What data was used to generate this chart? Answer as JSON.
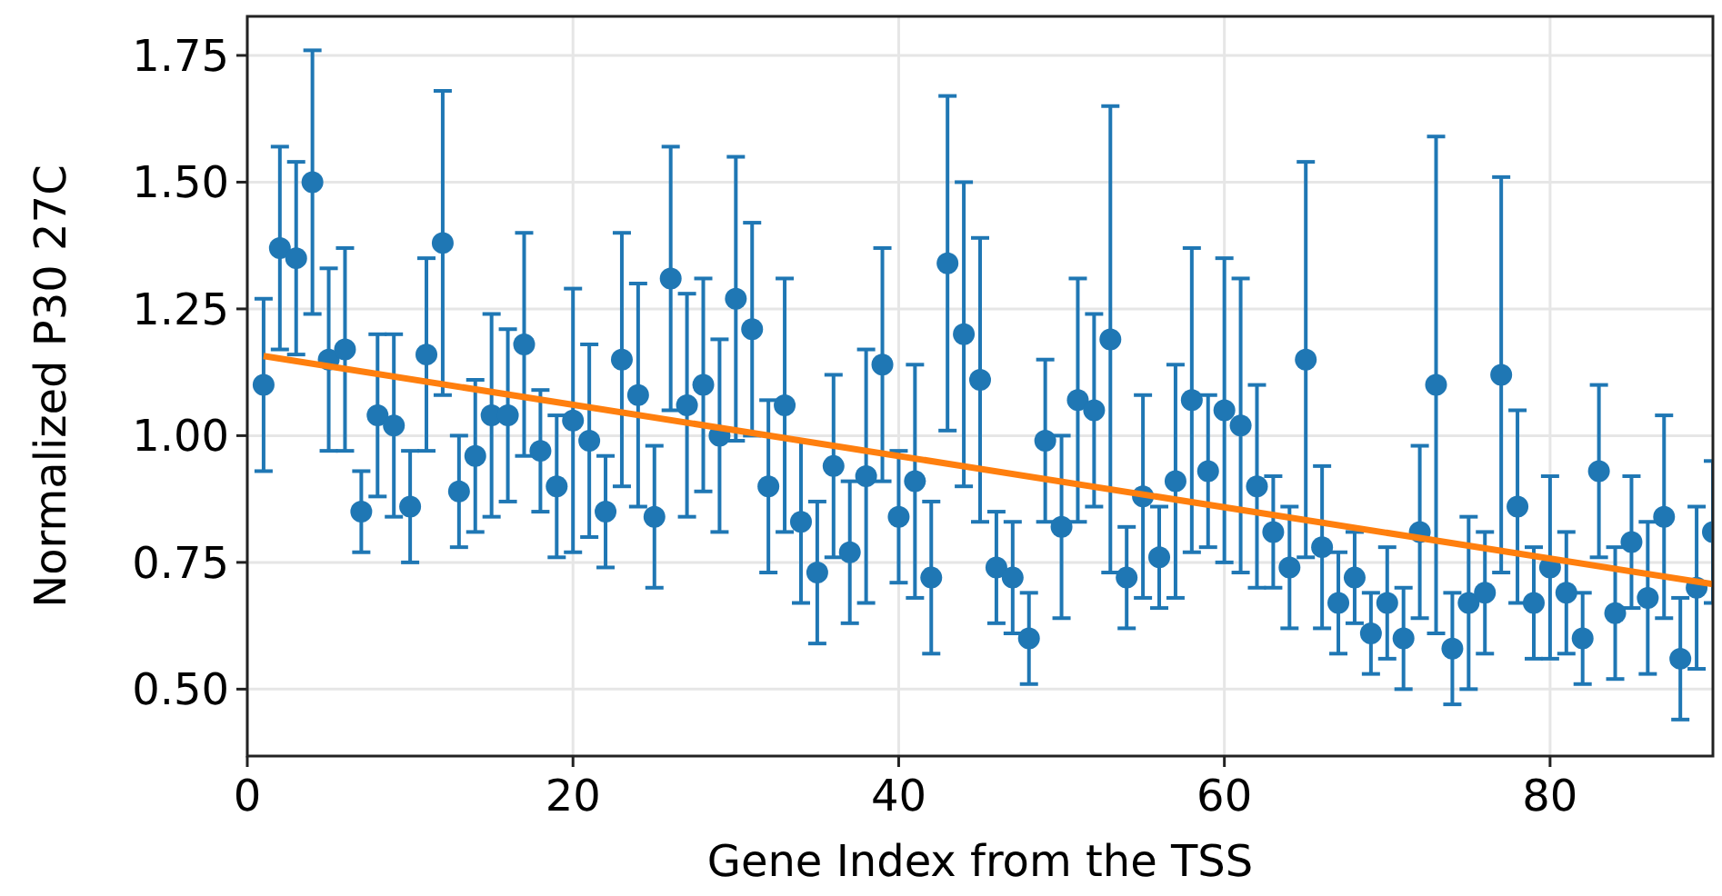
{
  "chart_data": {
    "type": "scatter",
    "xlabel": "Gene Index from the TSS",
    "ylabel": "Normalized P30 27C",
    "xlim": [
      0,
      90
    ],
    "xticks": [
      0,
      20,
      40,
      60,
      80
    ],
    "ylim": [
      0.368,
      1.827
    ],
    "yticks": [
      {
        "value": 0.5,
        "label": "0.50"
      },
      0.75,
      {
        "value": 1,
        "label": "1.00"
      },
      1.25,
      {
        "value": 1.5,
        "label": "1.50"
      },
      1.75
    ],
    "grid": true,
    "marker": "circle",
    "series": [
      {
        "color": "#1f77b4",
        "x": [
          1,
          2,
          3,
          4,
          5,
          6,
          7,
          8,
          9,
          10,
          11,
          12,
          13,
          14,
          15,
          16,
          17,
          18,
          19,
          20,
          21,
          22,
          23,
          24,
          25,
          26,
          27,
          28,
          29,
          30,
          31,
          32,
          33,
          34,
          35,
          36,
          37,
          38,
          39,
          40,
          41,
          42,
          43,
          44,
          45,
          46,
          47,
          48,
          49,
          50,
          51,
          52,
          53,
          54,
          55,
          56,
          57,
          58,
          59,
          60,
          61,
          62,
          63,
          64,
          65,
          66,
          67,
          68,
          69,
          70,
          71,
          72,
          73,
          74,
          75,
          76,
          77,
          78,
          79,
          80,
          81,
          82,
          83,
          84,
          85,
          86,
          87,
          88,
          89,
          90
        ],
        "values": [
          1.1,
          1.37,
          1.35,
          1.5,
          1.15,
          1.17,
          0.85,
          1.04,
          1.02,
          0.86,
          1.16,
          1.38,
          0.89,
          0.96,
          1.04,
          1.04,
          1.18,
          0.97,
          0.9,
          1.03,
          0.99,
          0.85,
          1.15,
          1.08,
          0.84,
          1.31,
          1.06,
          1.1,
          1.0,
          1.27,
          1.21,
          0.9,
          1.06,
          0.83,
          0.73,
          0.94,
          0.77,
          0.92,
          1.14,
          0.84,
          0.91,
          0.72,
          1.34,
          1.2,
          1.11,
          0.74,
          0.72,
          0.6,
          0.99,
          0.82,
          1.07,
          1.05,
          1.19,
          0.72,
          0.88,
          0.76,
          0.91,
          1.07,
          0.93,
          1.05,
          1.02,
          0.9,
          0.81,
          0.74,
          1.15,
          0.78,
          0.67,
          0.72,
          0.61,
          0.67,
          0.6,
          0.81,
          1.1,
          0.58,
          0.67,
          0.69,
          1.12,
          0.86,
          0.67,
          0.74,
          0.69,
          0.6,
          0.93,
          0.65,
          0.79,
          0.68,
          0.84,
          0.56,
          0.7,
          0.81
        ],
        "errors": [
          0.17,
          0.2,
          0.19,
          0.26,
          0.18,
          0.2,
          0.08,
          0.16,
          0.18,
          0.11,
          0.19,
          0.3,
          0.11,
          0.15,
          0.2,
          0.17,
          0.22,
          0.12,
          0.14,
          0.26,
          0.19,
          0.11,
          0.25,
          0.22,
          0.14,
          0.26,
          0.22,
          0.21,
          0.19,
          0.28,
          0.21,
          0.17,
          0.25,
          0.16,
          0.14,
          0.18,
          0.14,
          0.25,
          0.23,
          0.13,
          0.23,
          0.15,
          0.33,
          0.3,
          0.28,
          0.11,
          0.11,
          0.09,
          0.16,
          0.18,
          0.24,
          0.19,
          0.46,
          0.1,
          0.2,
          0.1,
          0.23,
          0.3,
          0.15,
          0.3,
          0.29,
          0.2,
          0.11,
          0.12,
          0.39,
          0.16,
          0.1,
          0.09,
          0.08,
          0.11,
          0.1,
          0.17,
          0.49,
          0.11,
          0.17,
          0.12,
          0.39,
          0.19,
          0.11,
          0.18,
          0.12,
          0.09,
          0.17,
          0.13,
          0.13,
          0.15,
          0.2,
          0.12,
          0.16,
          0.14
        ]
      },
      {
        "type": "line",
        "color": "#ff7f0e",
        "marker": "none",
        "x": [
          1,
          90
        ],
        "values": [
          1.157,
          0.707
        ]
      }
    ]
  }
}
